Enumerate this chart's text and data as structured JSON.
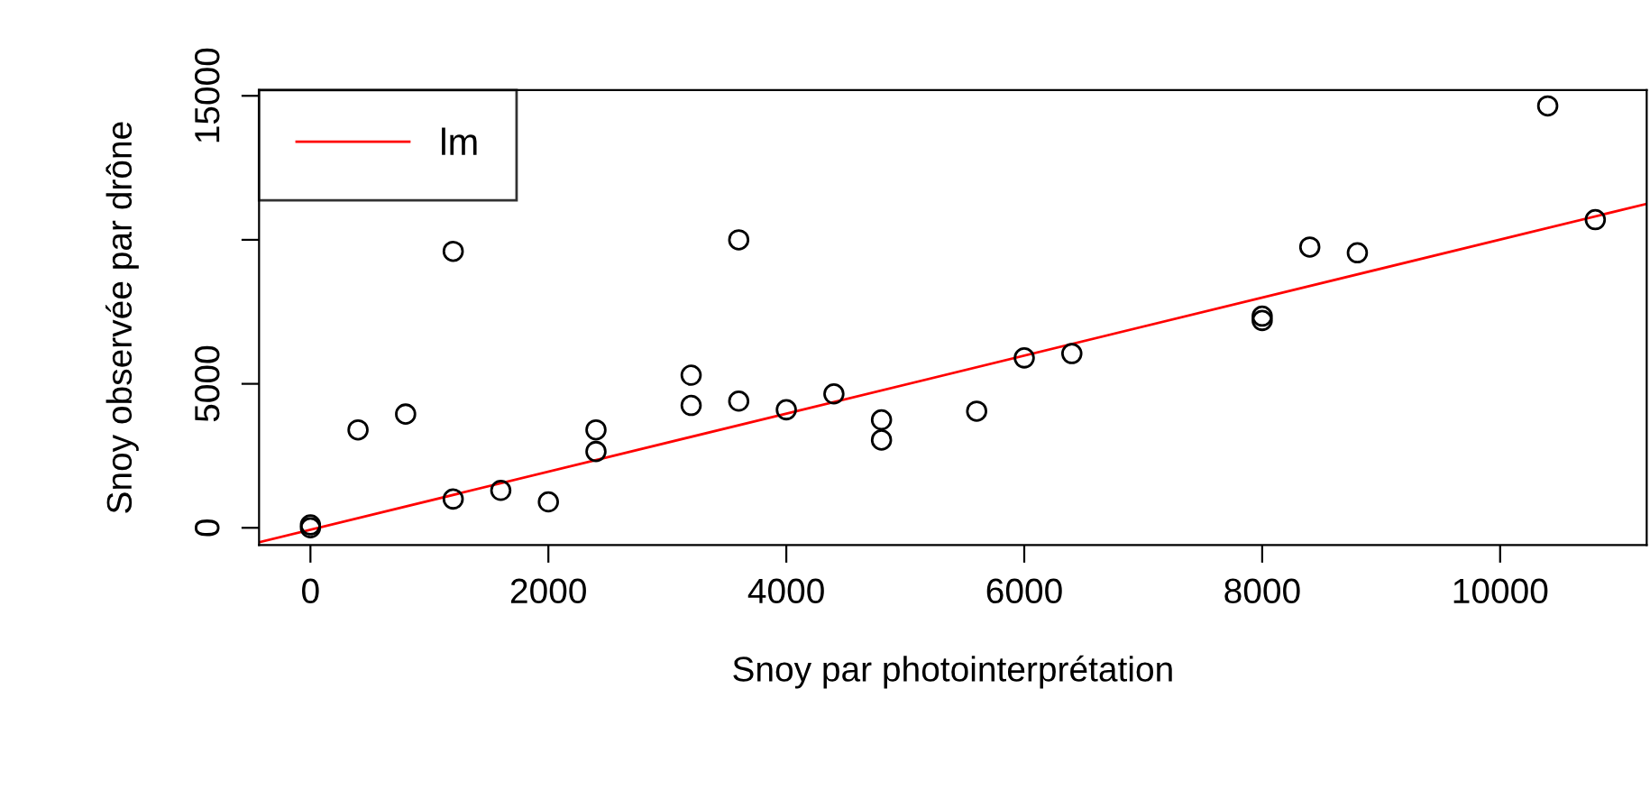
{
  "chart_data": {
    "type": "scatter",
    "xlabel": "Snoy par photointerprétation",
    "ylabel": "Snoy observée par drône",
    "xlim": [
      -432,
      11232
    ],
    "ylim": [
      -600,
      15200
    ],
    "xticks": [
      0,
      2000,
      4000,
      6000,
      8000,
      10000
    ],
    "yticks": [
      0,
      5000,
      {
        "value": 10000,
        "label": null
      },
      15000
    ],
    "grid": false,
    "legend": "top left",
    "series": [
      {
        "color": "#000000",
        "marker": "circle",
        "x": [
          0,
          0,
          400,
          800,
          1200,
          1200,
          1600,
          2000,
          2400,
          2400,
          3200,
          3200,
          3600,
          3600,
          4000,
          4400,
          4800,
          4800,
          5600,
          6000,
          6400,
          8000,
          8000,
          8400,
          8800,
          10400,
          10800
        ],
        "values": [
          0,
          100,
          3400,
          3950,
          9600,
          1000,
          1300,
          900,
          3400,
          2650,
          5300,
          4250,
          10000,
          4400,
          4100,
          4650,
          3750,
          3050,
          4050,
          5900,
          6050,
          7200,
          7350,
          9750,
          9550,
          14650,
          10700
        ]
      },
      {
        "type": "line",
        "name": "lm",
        "color": "#ff0000",
        "marker": "none",
        "line_style": "solid",
        "x": [
          -432,
          11232
        ],
        "values": [
          -500,
          11250
        ]
      }
    ]
  }
}
